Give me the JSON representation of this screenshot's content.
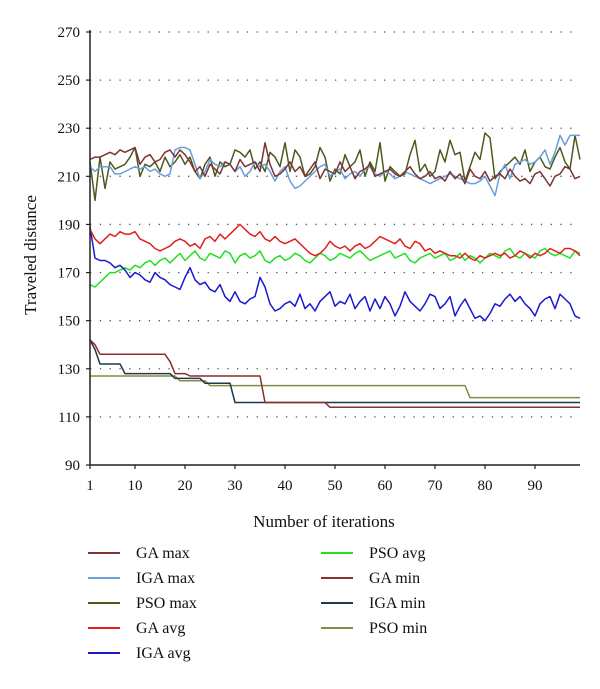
{
  "chart_data": {
    "type": "line",
    "xlabel": "Number of iterations",
    "ylabel": "Traveled distance",
    "xlim": [
      1,
      99
    ],
    "ylim": [
      90,
      270
    ],
    "xticks": [
      1,
      10,
      20,
      30,
      40,
      50,
      60,
      70,
      80,
      90
    ],
    "yticks": [
      90,
      110,
      130,
      150,
      170,
      190,
      210,
      230,
      250,
      270
    ],
    "grid": "dotted horizontal",
    "legend_position": "bottom",
    "series": [
      {
        "name": "GA max",
        "color": "#7b3535",
        "values": [
          217,
          218,
          218,
          219,
          220,
          219,
          221,
          220,
          221,
          222,
          215,
          218,
          219,
          216,
          217,
          220,
          221,
          218,
          221,
          219,
          216,
          212,
          214,
          210,
          215,
          213,
          211,
          216,
          215,
          212,
          217,
          214,
          215,
          216,
          212,
          224,
          215,
          210,
          211,
          213,
          216,
          212,
          214,
          210,
          213,
          216,
          209,
          213,
          212,
          211,
          216,
          212,
          214,
          209,
          212,
          213,
          215,
          210,
          211,
          212,
          213,
          211,
          210,
          212,
          214,
          211,
          209,
          210,
          212,
          209,
          210,
          208,
          212,
          209,
          211,
          207,
          213,
          210,
          209,
          212,
          208,
          210,
          211,
          209,
          213,
          210,
          208,
          209,
          207,
          211,
          212,
          209,
          206,
          210,
          211,
          214,
          213,
          209,
          210
        ]
      },
      {
        "name": "IGA max",
        "color": "#6a9fd8",
        "values": [
          214,
          212,
          214,
          214,
          214,
          211,
          211,
          212,
          213,
          214,
          213,
          214,
          212,
          213,
          211,
          210,
          211,
          221,
          222,
          222,
          221,
          215,
          209,
          212,
          217,
          215,
          214,
          216,
          215,
          212,
          214,
          210,
          212,
          216,
          214,
          215,
          212,
          208,
          212,
          214,
          208,
          205,
          206,
          208,
          210,
          212,
          214,
          215,
          210,
          212,
          213,
          209,
          211,
          212,
          210,
          213,
          214,
          211,
          210,
          212,
          211,
          209,
          210,
          212,
          211,
          210,
          209,
          208,
          207,
          208,
          209,
          210,
          211,
          210,
          209,
          208,
          207,
          207,
          208,
          210,
          206,
          202,
          211,
          215,
          209,
          215,
          216,
          217,
          215,
          216,
          218,
          221,
          215,
          220,
          227,
          223,
          227,
          227,
          227
        ]
      },
      {
        "name": "PSO max",
        "color": "#4d5a1e",
        "values": [
          216,
          200,
          218,
          205,
          216,
          213,
          214,
          215,
          218,
          222,
          210,
          215,
          214,
          216,
          212,
          218,
          214,
          216,
          219,
          215,
          218,
          212,
          209,
          215,
          218,
          210,
          216,
          214,
          215,
          221,
          220,
          218,
          221,
          213,
          216,
          212,
          220,
          218,
          214,
          224,
          212,
          221,
          218,
          210,
          211,
          214,
          222,
          218,
          208,
          213,
          211,
          219,
          214,
          216,
          221,
          210,
          216,
          212,
          224,
          208,
          214,
          212,
          210,
          211,
          219,
          225,
          212,
          215,
          210,
          212,
          221,
          216,
          225,
          219,
          220,
          208,
          214,
          220,
          217,
          228,
          226,
          209,
          212,
          214,
          216,
          218,
          215,
          221,
          212,
          216,
          218,
          214,
          213,
          218,
          222,
          216,
          213,
          227,
          217
        ]
      },
      {
        "name": "GA avg",
        "color": "#e02020",
        "values": [
          188,
          184,
          182,
          184,
          186,
          185,
          187,
          186,
          186,
          187,
          184,
          183,
          182,
          180,
          179,
          180,
          181,
          183,
          184,
          183,
          181,
          182,
          180,
          184,
          185,
          183,
          186,
          184,
          186,
          188,
          190,
          188,
          186,
          185,
          187,
          184,
          183,
          185,
          183,
          182,
          183,
          184,
          182,
          180,
          178,
          177,
          178,
          180,
          183,
          181,
          180,
          181,
          179,
          181,
          182,
          180,
          181,
          183,
          185,
          184,
          183,
          182,
          184,
          181,
          180,
          183,
          182,
          179,
          180,
          178,
          179,
          178,
          177,
          177,
          176,
          178,
          176,
          175,
          177,
          176,
          177,
          178,
          177,
          178,
          176,
          177,
          179,
          178,
          176,
          178,
          177,
          178,
          180,
          179,
          178,
          180,
          180,
          179,
          177
        ]
      },
      {
        "name": "IGA avg",
        "color": "#1a1acc",
        "values": [
          189,
          176,
          175,
          175,
          174,
          172,
          173,
          171,
          168,
          170,
          169,
          167,
          166,
          170,
          168,
          167,
          165,
          164,
          163,
          168,
          172,
          167,
          165,
          166,
          163,
          162,
          165,
          160,
          158,
          162,
          158,
          157,
          159,
          160,
          168,
          164,
          157,
          154,
          155,
          157,
          158,
          156,
          161,
          155,
          157,
          154,
          158,
          160,
          162,
          156,
          158,
          157,
          161,
          155,
          158,
          160,
          154,
          159,
          155,
          160,
          157,
          152,
          156,
          162,
          158,
          156,
          154,
          157,
          161,
          160,
          155,
          157,
          160,
          152,
          156,
          159,
          155,
          151,
          152,
          150,
          153,
          157,
          156,
          159,
          161,
          158,
          160,
          157,
          155,
          152,
          157,
          159,
          160,
          155,
          161,
          159,
          157,
          152,
          151
        ]
      },
      {
        "name": "PSO avg",
        "color": "#22e022",
        "values": [
          165,
          164,
          166,
          168,
          170,
          170,
          171,
          172,
          171,
          173,
          172,
          174,
          175,
          173,
          175,
          176,
          174,
          176,
          178,
          175,
          177,
          179,
          176,
          175,
          178,
          177,
          176,
          179,
          178,
          174,
          177,
          178,
          176,
          177,
          179,
          175,
          174,
          176,
          177,
          175,
          176,
          178,
          177,
          175,
          174,
          176,
          178,
          177,
          175,
          176,
          178,
          177,
          176,
          178,
          179,
          177,
          175,
          176,
          177,
          178,
          179,
          176,
          177,
          178,
          175,
          174,
          176,
          177,
          178,
          176,
          177,
          178,
          175,
          176,
          178,
          175,
          177,
          176,
          174,
          176,
          178,
          177,
          176,
          179,
          180,
          177,
          176,
          178,
          177,
          176,
          179,
          180,
          178,
          177,
          178,
          177,
          176,
          179,
          178
        ]
      },
      {
        "name": "GA min",
        "color": "#8b2e2e",
        "values": [
          142,
          140,
          136,
          136,
          136,
          136,
          136,
          136,
          136,
          136,
          136,
          136,
          136,
          136,
          136,
          136,
          133,
          128,
          128,
          128,
          127,
          127,
          127,
          127,
          127,
          127,
          127,
          127,
          127,
          127,
          127,
          127,
          127,
          127,
          127,
          116,
          116,
          116,
          116,
          116,
          116,
          116,
          116,
          116,
          116,
          116,
          116,
          116,
          114,
          114,
          114,
          114,
          114,
          114,
          114,
          114,
          114,
          114,
          114,
          114,
          114,
          114,
          114,
          114,
          114,
          114,
          114,
          114,
          114,
          114,
          114,
          114,
          114,
          114,
          114,
          114,
          114,
          114,
          114,
          114,
          114,
          114,
          114,
          114,
          114,
          114,
          114,
          114,
          114,
          114,
          114,
          114,
          114,
          114,
          114,
          114,
          114,
          114,
          114
        ]
      },
      {
        "name": "IGA min",
        "color": "#1e3a4a",
        "values": [
          142,
          138,
          132,
          132,
          132,
          132,
          132,
          128,
          128,
          128,
          128,
          128,
          128,
          128,
          128,
          128,
          128,
          126,
          126,
          126,
          126,
          126,
          126,
          124,
          124,
          124,
          124,
          124,
          124,
          116,
          116,
          116,
          116,
          116,
          116,
          116,
          116,
          116,
          116,
          116,
          116,
          116,
          116,
          116,
          116,
          116,
          116,
          116,
          116,
          116,
          116,
          116,
          116,
          116,
          116,
          116,
          116,
          116,
          116,
          116,
          116,
          116,
          116,
          116,
          116,
          116,
          116,
          116,
          116,
          116,
          116,
          116,
          116,
          116,
          116,
          116,
          116,
          116,
          116,
          116,
          116,
          116,
          116,
          116,
          116,
          116,
          116,
          116,
          116,
          116,
          116,
          116,
          116,
          116,
          116,
          116,
          116,
          116,
          116
        ]
      },
      {
        "name": "PSO min",
        "color": "#8a8a46",
        "values": [
          127,
          127,
          127,
          127,
          127,
          127,
          127,
          127,
          127,
          127,
          127,
          127,
          127,
          127,
          127,
          127,
          127,
          127,
          125,
          125,
          125,
          125,
          125,
          125,
          123,
          123,
          123,
          123,
          123,
          123,
          123,
          123,
          123,
          123,
          123,
          123,
          123,
          123,
          123,
          123,
          123,
          123,
          123,
          123,
          123,
          123,
          123,
          123,
          123,
          123,
          123,
          123,
          123,
          123,
          123,
          123,
          123,
          123,
          123,
          123,
          123,
          123,
          123,
          123,
          123,
          123,
          123,
          123,
          123,
          123,
          123,
          123,
          123,
          123,
          123,
          123,
          118,
          118,
          118,
          118,
          118,
          118,
          118,
          118,
          118,
          118,
          118,
          118,
          118,
          118,
          118,
          118,
          118,
          118,
          118,
          118,
          118,
          118,
          118
        ]
      }
    ]
  }
}
